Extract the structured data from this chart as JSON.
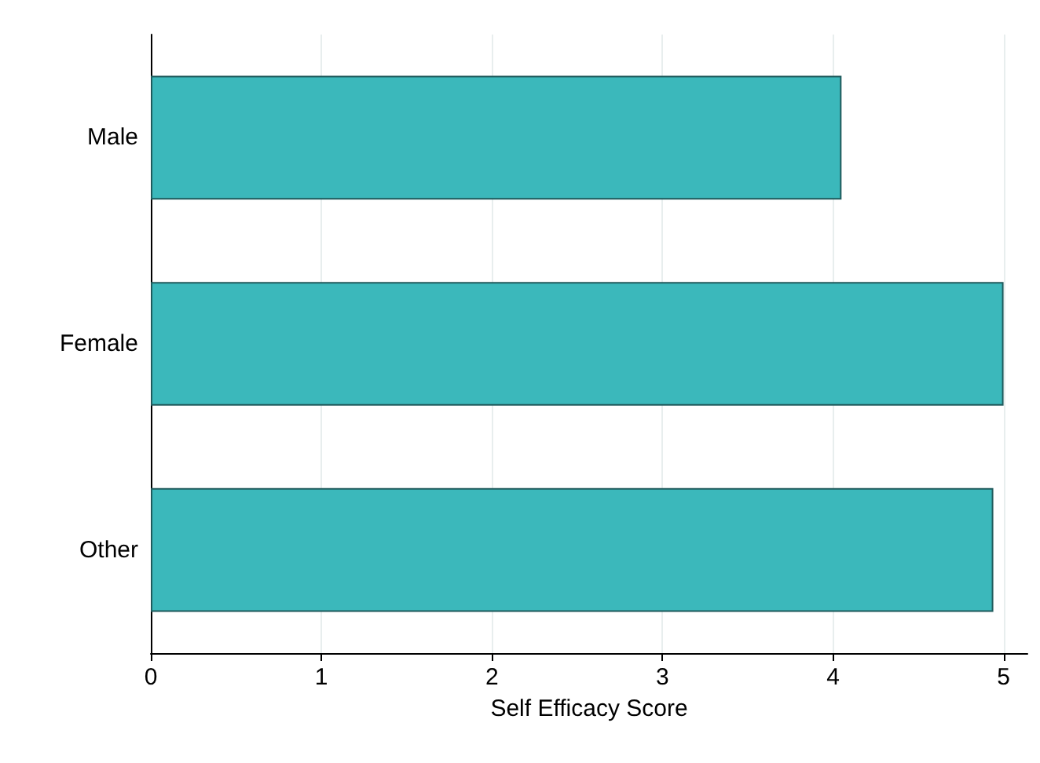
{
  "chart_data": {
    "type": "bar",
    "orientation": "horizontal",
    "xlabel": "Self Efficacy Score",
    "categories": [
      "Male",
      "Female",
      "Other"
    ],
    "values": [
      4.05,
      5.0,
      4.94
    ],
    "color": "#3bb8bb",
    "xlim": [
      0,
      5.14
    ],
    "xticks": [
      0,
      1,
      2,
      3,
      4,
      5
    ],
    "grid": "x"
  }
}
